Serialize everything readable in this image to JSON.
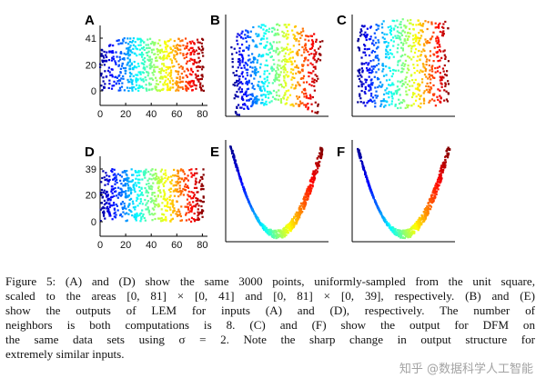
{
  "figure": {
    "panels": [
      {
        "label": "A",
        "kind": "rectangle",
        "y_max": 41,
        "yticks": [
          "41",
          "20",
          "0"
        ],
        "xticks": [
          "0",
          "20",
          "40",
          "60",
          "80"
        ]
      },
      {
        "label": "B",
        "kind": "arch_map"
      },
      {
        "label": "C",
        "kind": "dfm_map"
      },
      {
        "label": "D",
        "kind": "rectangle",
        "y_max": 39,
        "yticks": [
          "39",
          "20",
          "0"
        ],
        "xticks": [
          "0",
          "20",
          "40",
          "60",
          "80"
        ]
      },
      {
        "label": "E",
        "kind": "parabola"
      },
      {
        "label": "F",
        "kind": "parabola"
      }
    ]
  },
  "chart_data": {
    "type": "scatter",
    "title": "Figure 5",
    "description_points": 3000,
    "panels": [
      {
        "label": "A",
        "x_range": [
          0,
          81
        ],
        "y_range": [
          0,
          41
        ],
        "xticks": [
          0,
          20,
          40,
          60,
          80
        ],
        "yticks": [
          0,
          20,
          41
        ]
      },
      {
        "label": "D",
        "x_range": [
          0,
          81
        ],
        "y_range": [
          0,
          39
        ],
        "xticks": [
          0,
          20,
          40,
          60,
          80
        ],
        "yticks": [
          0,
          20,
          39
        ]
      }
    ],
    "colormap": [
      "#00008f",
      "#0000ff",
      "#00ffff",
      "#ffff00",
      "#ff0000",
      "#800000"
    ]
  },
  "caption": {
    "lines": [
      "Figure 5: (A) and (D) show the same 3000 points, uniformly-sampled from the unit square,",
      "scaled to the areas [0, 81] × [0, 41] and [0, 81] × [0, 39], respectively. (B) and (E)",
      "show the outputs of LEM for inputs (A) and (D), respectively. The number of",
      "neighbors is both computations is 8. (C) and (F) show the output for DFM on",
      "the same data sets using σ = 2. Note the sharp change in output structure for",
      "extremely similar inputs."
    ]
  },
  "watermark": "知乎 @数据科学人工智能"
}
